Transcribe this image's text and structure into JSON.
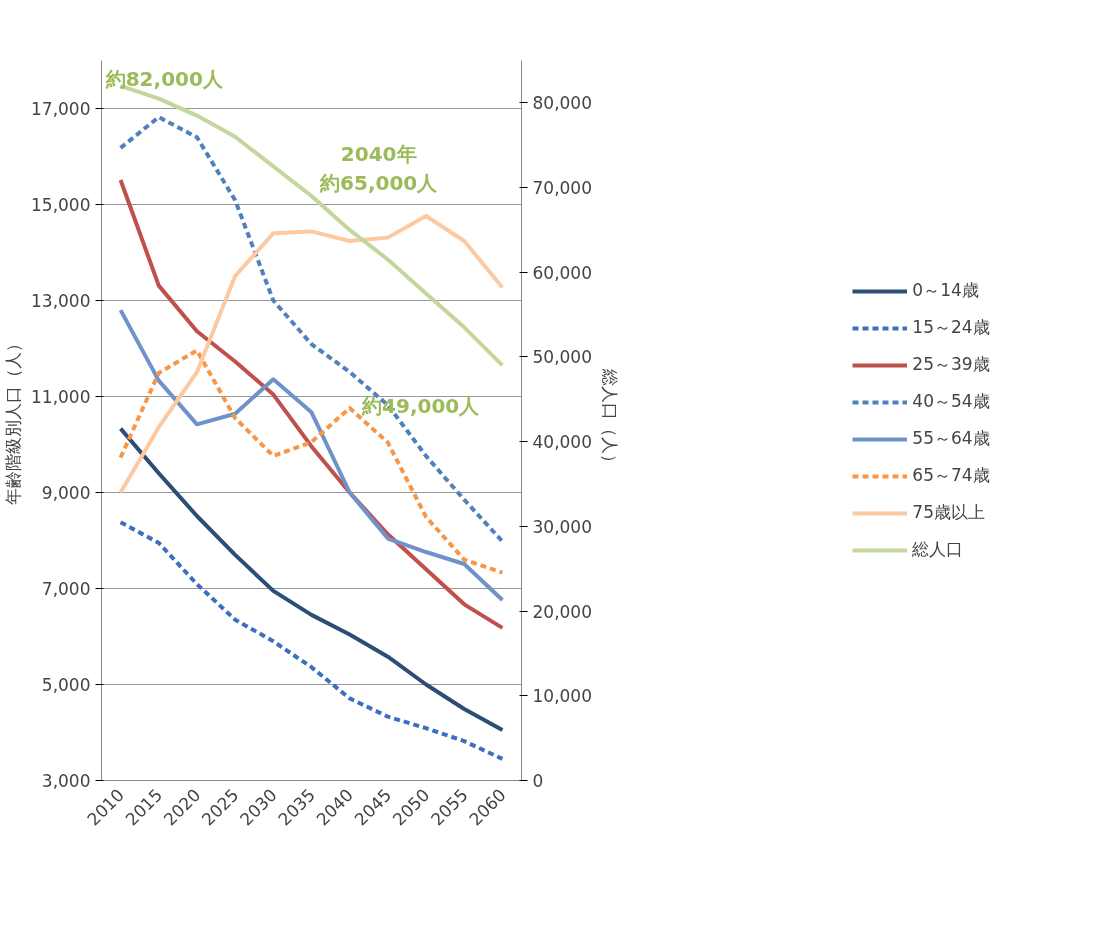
{
  "chart_data": {
    "type": "line",
    "ylabel": "年齢階級別人口（人）",
    "y2label": "総人口（人）",
    "categories": [
      "2010",
      "2015",
      "2020",
      "2025",
      "2030",
      "2035",
      "2040",
      "2045",
      "2050",
      "2055",
      "2060"
    ],
    "ylim": [
      3000,
      18000
    ],
    "yticks": [
      {
        "value": 3000,
        "label": "3,000"
      },
      {
        "value": 5000,
        "label": "5,000"
      },
      {
        "value": 7000,
        "label": "7,000"
      },
      {
        "value": 9000,
        "label": "9,000"
      },
      {
        "value": 11000,
        "label": "11,000"
      },
      {
        "value": 13000,
        "label": "13,000"
      },
      {
        "value": 15000,
        "label": "15,000"
      },
      {
        "value": 17000,
        "label": "17,000"
      }
    ],
    "y2lim": [
      0,
      85000
    ],
    "y2ticks": [
      0,
      {
        "value": 10000,
        "label": "10,000"
      },
      {
        "value": 20000,
        "label": "20,000"
      },
      {
        "value": 30000,
        "label": "30,000"
      },
      {
        "value": 40000,
        "label": "40,000"
      },
      {
        "value": 50000,
        "label": "50,000"
      },
      {
        "value": 60000,
        "label": "60,000"
      },
      {
        "value": 70000,
        "label": "70,000"
      },
      {
        "value": 80000,
        "label": "80,000"
      }
    ],
    "grid": "y",
    "legend": "right",
    "marker": "none",
    "series": [
      {
        "name": "0～14歳",
        "color": "#2c4d75",
        "line_style": "solid",
        "values": [
          10330,
          9400,
          8510,
          7700,
          6950,
          6450,
          6040,
          5580,
          5000,
          4490,
          4050
        ]
      },
      {
        "name": "15～24歳",
        "color": "#3c6fbf",
        "line_style": "dashed",
        "values": [
          8380,
          7950,
          7090,
          6350,
          5900,
          5360,
          4710,
          4330,
          4090,
          3820,
          3450
        ]
      },
      {
        "name": "25～39歳",
        "color": "#c0504d",
        "line_style": "solid",
        "values": [
          15510,
          13310,
          12360,
          11730,
          11040,
          9960,
          9000,
          8130,
          7400,
          6670,
          6180
        ]
      },
      {
        "name": "40～54歳",
        "color": "#4f81bd",
        "line_style": "dashed",
        "values": [
          16180,
          16820,
          16400,
          15090,
          13000,
          12090,
          11510,
          10820,
          9760,
          8850,
          7980
        ]
      },
      {
        "name": "55～64歳",
        "color": "#6f93c8",
        "line_style": "solid",
        "values": [
          12800,
          11330,
          10420,
          10640,
          11360,
          10670,
          9000,
          8040,
          7760,
          7510,
          6760
        ]
      },
      {
        "name": "65～74歳",
        "color": "#f79646",
        "line_style": "dashed",
        "values": [
          9730,
          11490,
          11960,
          10550,
          9760,
          10050,
          10760,
          10040,
          8490,
          7600,
          7330
        ]
      },
      {
        "name": "75歳以上",
        "color": "#fcc9a0",
        "line_style": "solid",
        "values": [
          9000,
          10360,
          11510,
          13510,
          14400,
          14440,
          14240,
          14310,
          14760,
          14240,
          13270
        ]
      },
      {
        "name": "総人口",
        "color": "#c3d69b",
        "line_style": "solid",
        "axis": "y2",
        "values": [
          82000,
          80500,
          78500,
          76000,
          72500,
          69000,
          65000,
          61500,
          57500,
          53500,
          49000
        ]
      }
    ],
    "annotations": [
      "約82,000人",
      "2040年",
      "約65,000人",
      "約49,000人"
    ]
  }
}
